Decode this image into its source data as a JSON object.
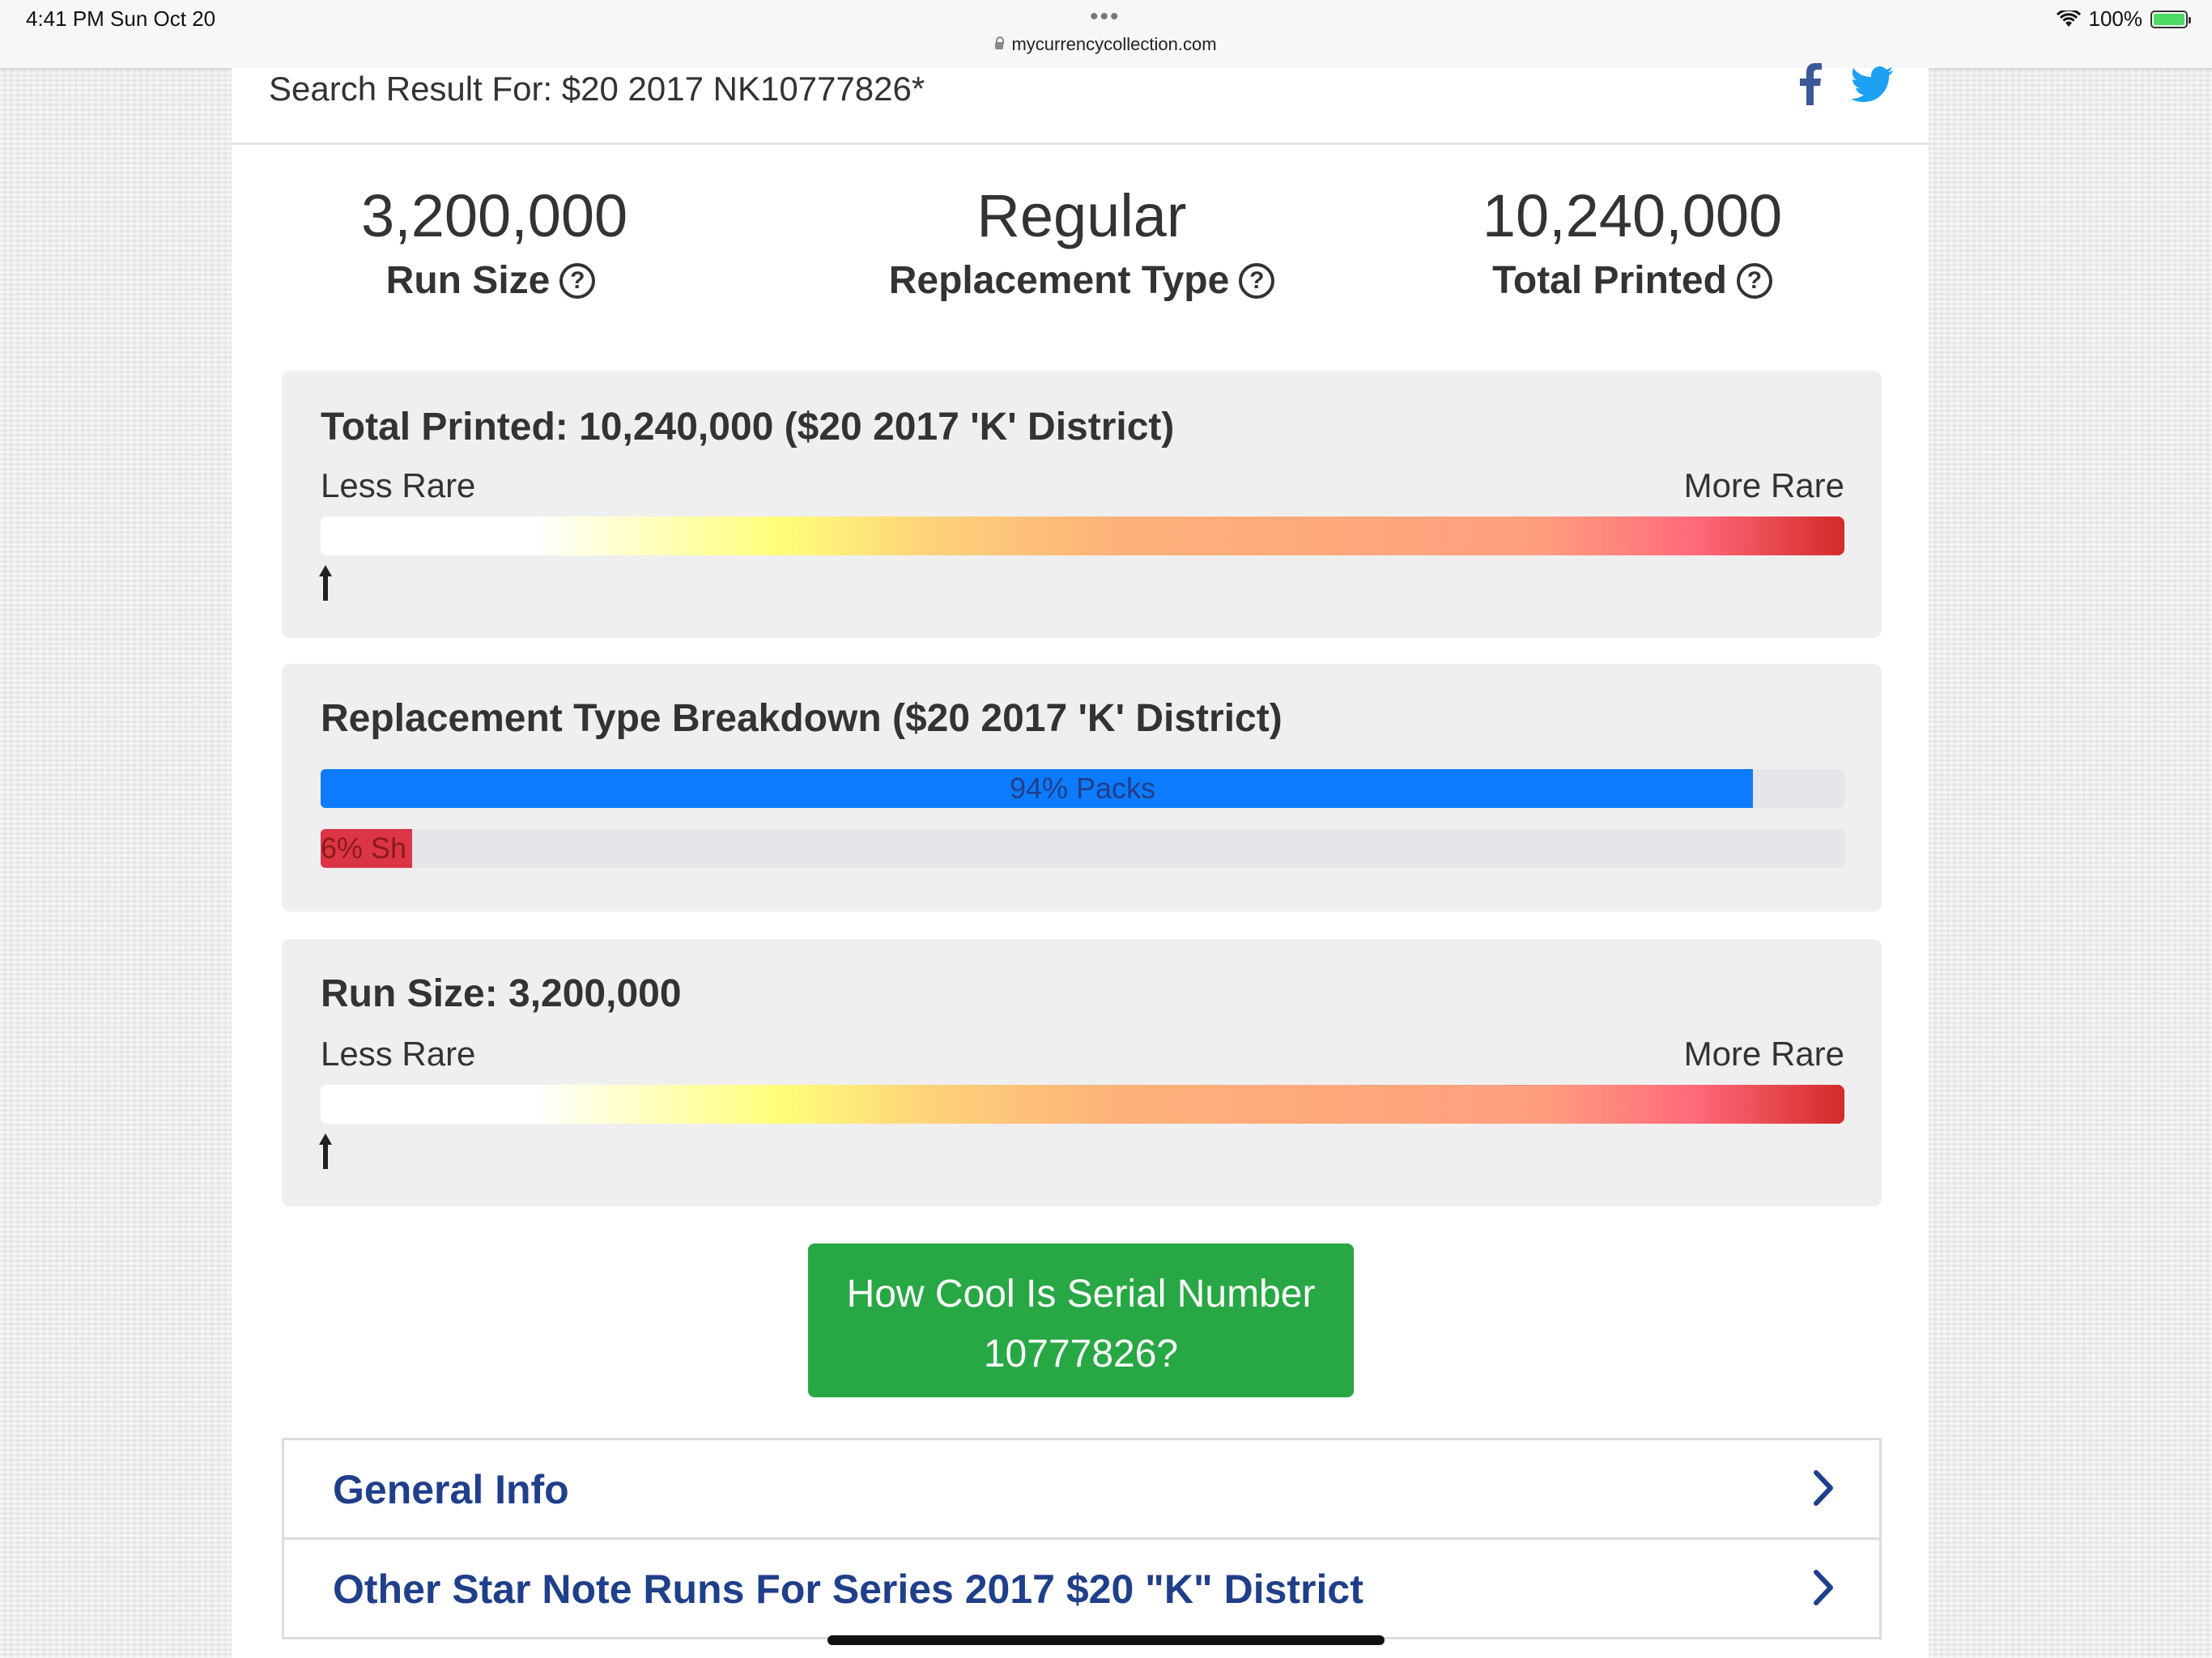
{
  "status_bar": {
    "time": "4:41 PM   Sun Oct 20",
    "dots": "•••",
    "url": "mycurrencycollection.com",
    "battery": "100%"
  },
  "header": {
    "search_title": "Search Result For: $20 2017 NK10777826*"
  },
  "stats": [
    {
      "value": "3,200,000",
      "label": "Run Size"
    },
    {
      "value": "Regular",
      "label": "Replacement Type"
    },
    {
      "value": "10,240,000",
      "label": "Total Printed"
    }
  ],
  "help_glyph": "?",
  "total_printed_card": {
    "title": "Total Printed: 10,240,000 ($20 2017 'K' District)",
    "less": "Less Rare",
    "more": "More Rare"
  },
  "breakdown_card": {
    "title": "Replacement Type Breakdown ($20 2017 'K' District)",
    "bars": [
      {
        "label": "94% Packs",
        "percent": 94,
        "color": "#0d7bff",
        "text_color": "#1f3f8a"
      },
      {
        "label": "6% Sh",
        "percent": 6,
        "color": "#dc3545",
        "text_color": "#8a1a1a"
      }
    ]
  },
  "run_size_card": {
    "title": "Run Size: 3,200,000",
    "less": "Less Rare",
    "more": "More Rare"
  },
  "cta": {
    "line1": "How Cool Is Serial Number",
    "line2": "10777826?"
  },
  "accordion": [
    {
      "title": "General Info"
    },
    {
      "title": "Other Star Note Runs For Series 2017 $20 \"K\" District"
    }
  ],
  "colors": {
    "facebook": "#3b5998",
    "twitter": "#1da1f2",
    "cta": "#28a745",
    "accordion_text": "#1f3f8a"
  }
}
